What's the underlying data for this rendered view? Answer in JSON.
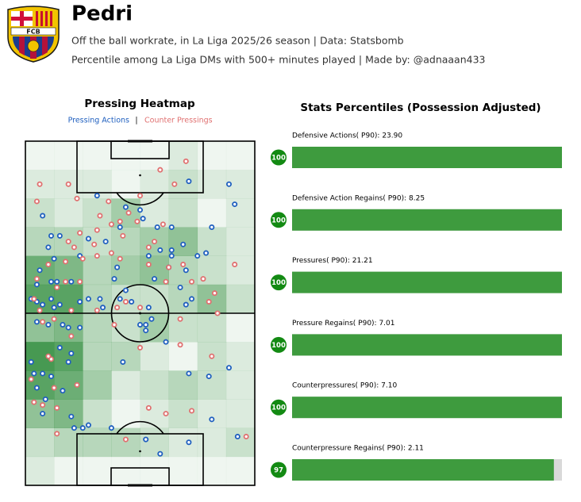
{
  "header": {
    "title": "Pedri",
    "subtitle": "Off the ball workrate, in La Liga 2025/26 season | Data: Statsbomb",
    "note": "Percentile among La Liga DMs with 500+ minutes played | Made by: @adnaaan433",
    "logo_text": "FCB"
  },
  "chart_data": [
    {
      "type": "heatmap",
      "title": "Pressing Heatmap",
      "legend_separator": "|",
      "xlim": [
        0,
        80
      ],
      "ylim": [
        0,
        120
      ],
      "heatmap": {
        "color": "#2e8b3a",
        "values": [
          [
            0,
            0,
            0,
            0,
            0,
            1,
            0,
            0
          ],
          [
            1,
            1,
            1,
            0,
            1,
            2,
            1,
            1
          ],
          [
            2,
            1,
            2,
            4,
            1,
            2,
            0,
            1
          ],
          [
            3,
            3,
            2,
            3,
            4,
            5,
            2,
            1
          ],
          [
            7,
            6,
            3,
            4,
            5,
            3,
            2,
            1
          ],
          [
            8,
            8,
            3,
            2,
            2,
            3,
            5,
            2
          ],
          [
            5,
            6,
            3,
            2,
            4,
            2,
            2,
            0
          ],
          [
            9,
            8,
            3,
            3,
            1,
            0,
            2,
            1
          ],
          [
            8,
            7,
            4,
            1,
            2,
            3,
            2,
            1
          ],
          [
            5,
            6,
            2,
            0,
            1,
            2,
            1,
            1
          ],
          [
            2,
            3,
            3,
            3,
            2,
            1,
            1,
            2
          ],
          [
            1,
            0,
            0,
            0,
            0,
            0,
            0,
            0
          ]
        ]
      },
      "series": [
        {
          "name": "Pressing Actions",
          "color": "#1f5fbf",
          "x": [
            25,
            35,
            40,
            41,
            6,
            9,
            12,
            8,
            10,
            5,
            9,
            11,
            16,
            4,
            2,
            4,
            6,
            9,
            10,
            12,
            19,
            22,
            26,
            27,
            33,
            43,
            42,
            40,
            44,
            49,
            56,
            56,
            54,
            58,
            63,
            60,
            65,
            73,
            71,
            57,
            47,
            51,
            43,
            45,
            50,
            31,
            32,
            22,
            28,
            46,
            51,
            55,
            35,
            37,
            15,
            19,
            13,
            8,
            4,
            12,
            16,
            2,
            3,
            6,
            4,
            7,
            6,
            9,
            15,
            13,
            16,
            17,
            20,
            22,
            30,
            42,
            47,
            57,
            65,
            74,
            71,
            64,
            57,
            42,
            34,
            51,
            33,
            19
          ],
          "y": [
            101,
            97,
            96,
            93,
            94,
            87,
            87,
            83,
            79,
            75,
            71,
            71,
            71,
            70,
            65,
            64,
            63,
            65,
            62,
            63,
            64,
            65,
            65,
            62,
            65,
            62,
            56,
            56,
            58,
            50,
            75,
            63,
            69,
            65,
            81,
            80,
            90,
            98,
            105,
            106,
            82,
            80,
            80,
            72,
            76,
            72,
            76,
            86,
            85,
            90,
            82,
            84,
            68,
            64,
            55,
            55,
            56,
            56,
            57,
            48,
            46,
            43,
            39,
            39,
            34,
            30,
            25,
            38,
            43,
            33,
            24,
            20,
            20,
            21,
            20,
            16,
            11,
            15,
            23,
            17,
            41,
            38,
            39,
            54,
            43,
            90,
            90,
            80
          ]
        },
        {
          "name": "Counter Pressings",
          "color": "#e07070",
          "x": [
            56,
            47,
            52,
            15,
            5,
            18,
            4,
            40,
            29,
            26,
            30,
            36,
            33,
            34,
            39,
            48,
            45,
            25,
            19,
            15,
            17,
            24,
            20,
            30,
            33,
            25,
            14,
            8,
            43,
            43,
            50,
            55,
            73,
            58,
            62,
            49,
            4,
            3,
            14,
            11,
            19,
            35,
            32,
            40,
            66,
            64,
            54,
            67,
            25,
            31,
            16,
            5,
            6,
            10,
            16,
            40,
            54,
            65,
            2,
            9,
            8,
            10,
            18,
            6,
            3,
            11,
            11,
            35,
            43,
            58,
            77,
            49
          ],
          "y": [
            113,
            110,
            105,
            105,
            105,
            100,
            99,
            101,
            99,
            94,
            91,
            95,
            92,
            87,
            92,
            91,
            85,
            89,
            88,
            85,
            83,
            84,
            79,
            81,
            79,
            80,
            78,
            77,
            77,
            83,
            76,
            77,
            77,
            71,
            72,
            71,
            72,
            65,
            71,
            69,
            71,
            64,
            62,
            62,
            67,
            64,
            58,
            60,
            61,
            56,
            61,
            61,
            57,
            58,
            52,
            48,
            49,
            45,
            37,
            44,
            45,
            34,
            35,
            28,
            29,
            27,
            18,
            16,
            27,
            26,
            17,
            25
          ]
        }
      ]
    },
    {
      "type": "bar",
      "title": "Stats Percentiles (Possession Adjusted)",
      "xlim": [
        0,
        100
      ],
      "color": "#3e9b3e",
      "track_color": "#d9d9d9",
      "badge_color": "#138a13",
      "categories": [
        "Defensive Actions( P90): 23.90",
        "Defensive Action Regains( P90): 8.25",
        "Pressures( P90): 21.21",
        "Pressure Regains( P90): 7.01",
        "Counterpressures( P90): 7.10",
        "Counterpressure Regains( P90): 2.11"
      ],
      "values": [
        100,
        100,
        100,
        100,
        100,
        97
      ]
    }
  ]
}
